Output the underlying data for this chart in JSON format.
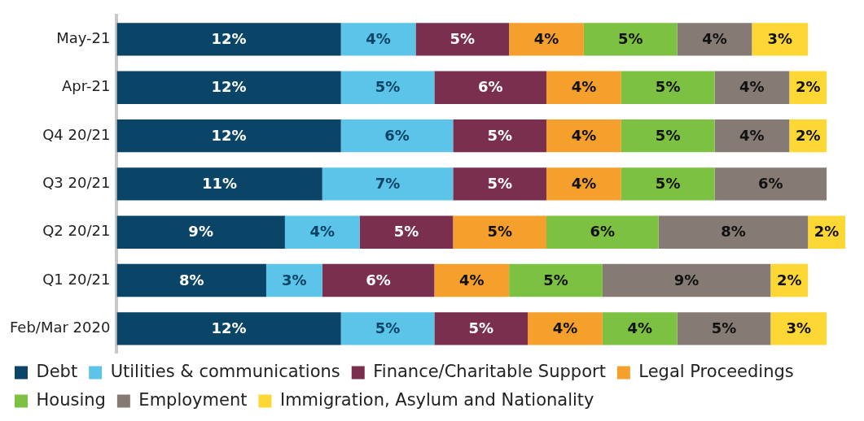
{
  "chart_data": {
    "type": "bar",
    "orientation": "horizontal",
    "stacked": true,
    "legend": "bottom",
    "tick_labels": "y",
    "categories": [
      "May-21",
      "Apr-21",
      "Q4 20/21",
      "Q3 20/21",
      "Q2 20/21",
      "Q1 20/21",
      "Feb/Mar 2020"
    ],
    "series": [
      {
        "name": "Debt",
        "color": "#0a4466",
        "values": [
          12,
          12,
          12,
          11,
          9,
          8,
          12
        ],
        "value_labels": [
          "12%",
          "12%",
          "12%",
          "11%",
          "9%",
          "8%",
          "12%"
        ]
      },
      {
        "name": "Utilities & communications",
        "color": "#5bc4e8",
        "values": [
          4,
          5,
          6,
          7,
          4,
          3,
          5
        ],
        "value_labels": [
          "4%",
          "5%",
          "6%",
          "7%",
          "4%",
          "3%",
          "5%"
        ]
      },
      {
        "name": "Finance/Charitable Support",
        "color": "#7b2f4f",
        "values": [
          5,
          6,
          5,
          5,
          5,
          6,
          5
        ],
        "value_labels": [
          "5%",
          "6%",
          "5%",
          "5%",
          "5%",
          "6%",
          "5%"
        ]
      },
      {
        "name": "Legal Proceedings",
        "color": "#f5a02d",
        "values": [
          4,
          4,
          4,
          4,
          5,
          4,
          4
        ],
        "value_labels": [
          "4%",
          "4%",
          "4%",
          "4%",
          "5%",
          "4%",
          "4%"
        ]
      },
      {
        "name": "Housing",
        "color": "#7dc142",
        "values": [
          5,
          5,
          5,
          5,
          6,
          5,
          4
        ],
        "value_labels": [
          "5%",
          "5%",
          "5%",
          "5%",
          "6%",
          "5%",
          "4%"
        ]
      },
      {
        "name": "Employment",
        "color": "#857b74",
        "values": [
          4,
          4,
          4,
          6,
          8,
          9,
          5
        ],
        "value_labels": [
          "4%",
          "4%",
          "4%",
          "6%",
          "8%",
          "9%",
          "5%"
        ]
      },
      {
        "name": "Immigration, Asylum and Nationality",
        "color": "#fdd835",
        "values": [
          3,
          2,
          2,
          null,
          2,
          2,
          3
        ],
        "value_labels": [
          "3%",
          "2%",
          "2%",
          null,
          "2%",
          "2%",
          "3%"
        ]
      }
    ]
  }
}
